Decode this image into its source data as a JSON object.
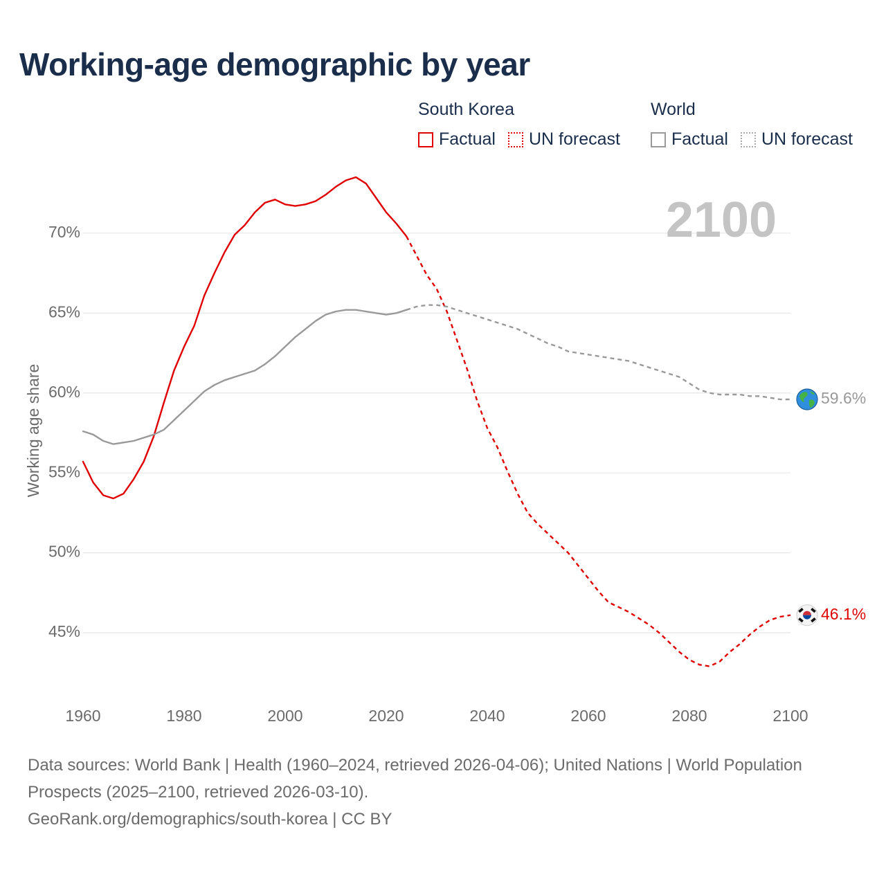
{
  "chart_data": {
    "type": "line",
    "title": "Working-age demographic by year",
    "xlabel": "",
    "ylabel": "Working age share",
    "current_year": "2100",
    "xlim": [
      1960,
      2100
    ],
    "ylim": [
      40.5,
      73.5
    ],
    "x_ticks": [
      "1960",
      "1980",
      "2000",
      "2020",
      "2040",
      "2060",
      "2080",
      "2100"
    ],
    "y_ticks": [
      "45%",
      "50%",
      "55%",
      "60%",
      "65%",
      "70%"
    ],
    "y_tick_values": [
      45,
      50,
      55,
      60,
      65,
      70
    ],
    "colors": {
      "south_korea": "#e00000",
      "world": "#999999",
      "grid": "#e6e6e6"
    },
    "legend": {
      "south_korea": {
        "title": "South Korea",
        "factual": "Factual",
        "forecast": "UN forecast"
      },
      "world": {
        "title": "World",
        "factual": "Factual",
        "forecast": "UN forecast"
      }
    },
    "series": [
      {
        "name": "South Korea",
        "color": "#e00000",
        "end_label": "46.1%",
        "end_icon": "south-korea-flag-icon",
        "factual": {
          "x": [
            1960,
            1962,
            1964,
            1966,
            1968,
            1970,
            1972,
            1974,
            1976,
            1978,
            1980,
            1982,
            1984,
            1986,
            1988,
            1990,
            1992,
            1994,
            1996,
            1998,
            2000,
            2002,
            2004,
            2006,
            2008,
            2010,
            2012,
            2014,
            2016,
            2018,
            2020,
            2022,
            2024
          ],
          "y": [
            55.7,
            54.4,
            53.6,
            53.4,
            53.7,
            54.6,
            55.7,
            57.3,
            59.4,
            61.4,
            62.9,
            64.2,
            66.1,
            67.5,
            68.8,
            69.9,
            70.5,
            71.3,
            71.9,
            72.1,
            71.8,
            71.7,
            71.8,
            72.0,
            72.4,
            72.9,
            73.3,
            73.5,
            73.1,
            72.2,
            71.3,
            70.6,
            69.8
          ]
        },
        "forecast": {
          "x": [
            2024,
            2026,
            2028,
            2030,
            2032,
            2034,
            2036,
            2038,
            2040,
            2042,
            2044,
            2046,
            2048,
            2050,
            2052,
            2054,
            2056,
            2058,
            2060,
            2062,
            2064,
            2066,
            2068,
            2070,
            2072,
            2074,
            2076,
            2078,
            2080,
            2082,
            2084,
            2086,
            2088,
            2090,
            2092,
            2094,
            2096,
            2098,
            2100
          ],
          "y": [
            69.8,
            68.6,
            67.4,
            66.5,
            65.1,
            63.3,
            61.5,
            59.5,
            57.8,
            56.6,
            55.1,
            53.7,
            52.5,
            51.8,
            51.2,
            50.6,
            50.0,
            49.2,
            48.4,
            47.6,
            46.9,
            46.6,
            46.3,
            45.9,
            45.5,
            45.0,
            44.4,
            43.8,
            43.3,
            43.0,
            42.9,
            43.2,
            43.8,
            44.3,
            44.9,
            45.4,
            45.8,
            46.0,
            46.1
          ]
        }
      },
      {
        "name": "World",
        "color": "#999999",
        "end_label": "59.6%",
        "end_icon": "world-globe-icon",
        "factual": {
          "x": [
            1960,
            1962,
            1964,
            1966,
            1968,
            1970,
            1972,
            1974,
            1976,
            1978,
            1980,
            1982,
            1984,
            1986,
            1988,
            1990,
            1992,
            1994,
            1996,
            1998,
            2000,
            2002,
            2004,
            2006,
            2008,
            2010,
            2012,
            2014,
            2016,
            2018,
            2020,
            2022,
            2024
          ],
          "y": [
            57.6,
            57.4,
            57.0,
            56.8,
            56.9,
            57.0,
            57.2,
            57.4,
            57.7,
            58.3,
            58.9,
            59.5,
            60.1,
            60.5,
            60.8,
            61.0,
            61.2,
            61.4,
            61.8,
            62.3,
            62.9,
            63.5,
            64.0,
            64.5,
            64.9,
            65.1,
            65.2,
            65.2,
            65.1,
            65.0,
            64.9,
            65.0,
            65.2
          ]
        },
        "forecast": {
          "x": [
            2024,
            2026,
            2028,
            2030,
            2032,
            2034,
            2036,
            2038,
            2040,
            2042,
            2044,
            2046,
            2048,
            2050,
            2052,
            2054,
            2056,
            2058,
            2060,
            2062,
            2064,
            2066,
            2068,
            2070,
            2072,
            2074,
            2076,
            2078,
            2080,
            2082,
            2084,
            2086,
            2088,
            2090,
            2092,
            2094,
            2096,
            2098,
            2100
          ],
          "y": [
            65.2,
            65.4,
            65.5,
            65.5,
            65.4,
            65.2,
            65.0,
            64.8,
            64.6,
            64.4,
            64.2,
            64.0,
            63.7,
            63.4,
            63.1,
            62.9,
            62.6,
            62.5,
            62.4,
            62.3,
            62.2,
            62.1,
            62.0,
            61.8,
            61.6,
            61.4,
            61.2,
            61.0,
            60.6,
            60.2,
            60.0,
            59.9,
            59.9,
            59.9,
            59.8,
            59.8,
            59.7,
            59.6,
            59.6
          ]
        }
      }
    ]
  },
  "footer": {
    "sources": "Data sources: World Bank | Health (1960–2024, retrieved 2026-04-06); United Nations | World Population Prospects (2025–2100, retrieved 2026-03-10).",
    "link": "GeoRank.org/demographics/south-korea | CC BY"
  }
}
